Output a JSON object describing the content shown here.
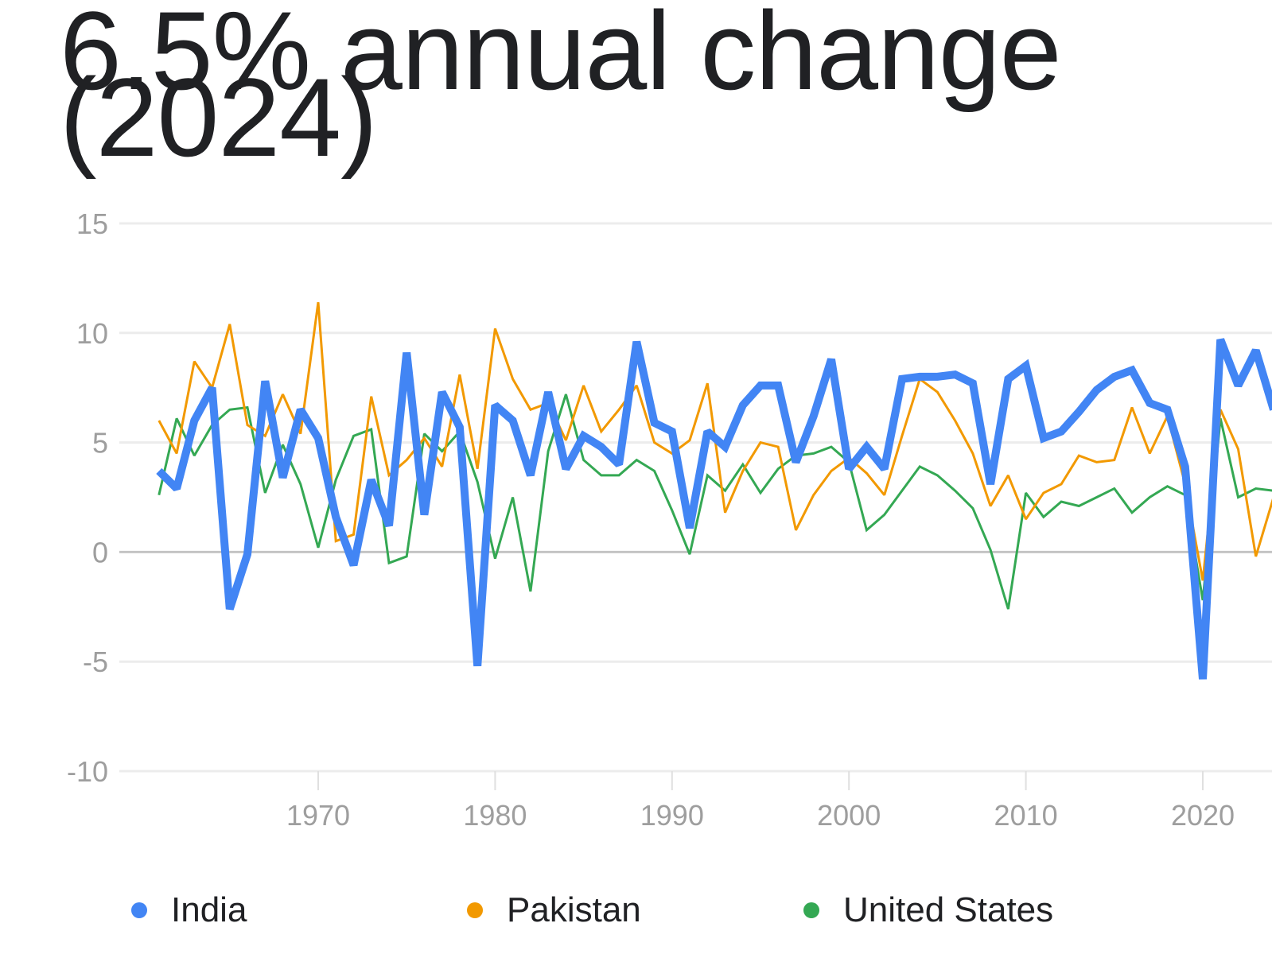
{
  "header": {
    "title": "6.5% annual change (2024)"
  },
  "chart_data": {
    "type": "line",
    "title": "6.5% annual change (2024)",
    "xlabel": "",
    "ylabel": "",
    "ylim": [
      -10,
      15
    ],
    "yticks": [
      "15",
      "10",
      "5",
      "0",
      "-5",
      "-10"
    ],
    "xticks": [
      "1970",
      "1980",
      "1990",
      "2000",
      "2010",
      "2020"
    ],
    "grid": true,
    "legend_position": "bottom",
    "x": [
      1961,
      1962,
      1963,
      1964,
      1965,
      1966,
      1967,
      1968,
      1969,
      1970,
      1971,
      1972,
      1973,
      1974,
      1975,
      1976,
      1977,
      1978,
      1979,
      1980,
      1981,
      1982,
      1983,
      1984,
      1985,
      1986,
      1987,
      1988,
      1989,
      1990,
      1991,
      1992,
      1993,
      1994,
      1995,
      1996,
      1997,
      1998,
      1999,
      2000,
      2001,
      2002,
      2003,
      2004,
      2005,
      2006,
      2007,
      2008,
      2009,
      2010,
      2011,
      2012,
      2013,
      2014,
      2015,
      2016,
      2017,
      2018,
      2019,
      2020,
      2021,
      2022,
      2023,
      2024
    ],
    "series": [
      {
        "name": "India",
        "color": "#4285f4",
        "values": [
          3.7,
          2.9,
          6.0,
          7.5,
          -2.6,
          -0.1,
          7.8,
          3.4,
          6.5,
          5.2,
          1.6,
          -0.6,
          3.3,
          1.2,
          9.1,
          1.7,
          7.3,
          5.7,
          -5.2,
          6.7,
          6.0,
          3.5,
          7.3,
          3.8,
          5.3,
          4.8,
          4.0,
          9.6,
          5.9,
          5.5,
          1.1,
          5.5,
          4.8,
          6.7,
          7.6,
          7.6,
          4.1,
          6.2,
          8.8,
          3.8,
          4.8,
          3.8,
          7.9,
          8.0,
          8.0,
          8.1,
          7.7,
          3.1,
          7.9,
          8.5,
          5.2,
          5.5,
          6.4,
          7.4,
          8.0,
          8.3,
          6.8,
          6.5,
          3.9,
          -5.8,
          9.7,
          7.6,
          9.2,
          6.5
        ]
      },
      {
        "name": "Pakistan",
        "color": "#f29900",
        "values": [
          6.0,
          4.5,
          8.7,
          7.5,
          10.4,
          5.8,
          5.3,
          7.2,
          5.4,
          11.4,
          0.5,
          0.8,
          7.1,
          3.5,
          4.2,
          5.2,
          3.9,
          8.1,
          3.8,
          10.2,
          7.9,
          6.5,
          6.8,
          5.1,
          7.6,
          5.5,
          6.5,
          7.6,
          5.0,
          4.5,
          5.1,
          7.7,
          1.8,
          3.7,
          5.0,
          4.8,
          1.0,
          2.6,
          3.7,
          4.3,
          3.6,
          2.6,
          5.3,
          7.9,
          7.3,
          6.0,
          4.5,
          2.1,
          3.5,
          1.5,
          2.7,
          3.1,
          4.4,
          4.1,
          4.2,
          6.6,
          4.5,
          6.2,
          3.1,
          -1.3,
          6.5,
          4.7,
          -0.2,
          2.5
        ]
      },
      {
        "name": "United States",
        "color": "#34a853",
        "values": [
          2.6,
          6.1,
          4.4,
          5.8,
          6.5,
          6.6,
          2.7,
          4.9,
          3.1,
          0.2,
          3.3,
          5.3,
          5.6,
          -0.5,
          -0.2,
          5.4,
          4.6,
          5.5,
          3.2,
          -0.3,
          2.5,
          -1.8,
          4.6,
          7.2,
          4.2,
          3.5,
          3.5,
          4.2,
          3.7,
          1.9,
          -0.1,
          3.5,
          2.8,
          4.0,
          2.7,
          3.8,
          4.4,
          4.5,
          4.8,
          4.1,
          1.0,
          1.7,
          2.8,
          3.9,
          3.5,
          2.8,
          2.0,
          0.1,
          -2.6,
          2.7,
          1.6,
          2.3,
          2.1,
          2.5,
          2.9,
          1.8,
          2.5,
          3.0,
          2.6,
          -2.2,
          6.1,
          2.5,
          2.9,
          2.8
        ]
      }
    ]
  },
  "legend": {
    "items": [
      {
        "label": "India",
        "color": "#4285f4"
      },
      {
        "label": "Pakistan",
        "color": "#f29900"
      },
      {
        "label": "United States",
        "color": "#34a853"
      }
    ]
  }
}
